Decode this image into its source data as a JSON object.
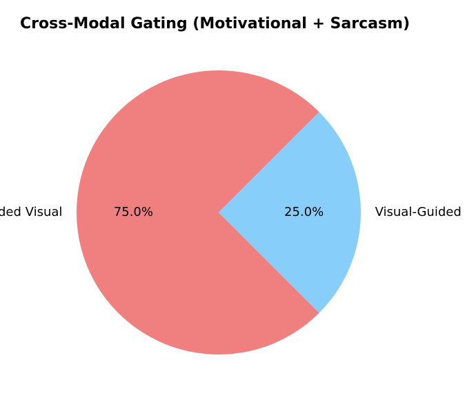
{
  "chart_data": {
    "type": "pie",
    "title": "Cross-Modal Gating (Motivational + Sarcasm)",
    "slices": [
      {
        "label": "Text-Guided Visual",
        "value": 75.0,
        "pct_label": "75.0%",
        "color": "#f08080"
      },
      {
        "label": "Visual-Guided Text",
        "value": 25.0,
        "pct_label": "25.0%",
        "color": "#87cefa"
      }
    ],
    "start_angle_deg": 45,
    "direction": "counterclockwise",
    "legend": "none"
  }
}
